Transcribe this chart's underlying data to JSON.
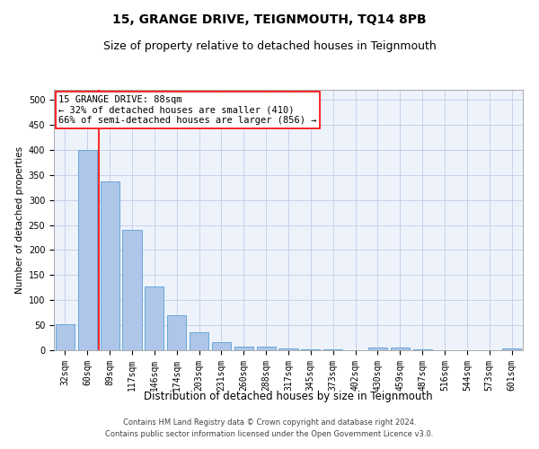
{
  "title": "15, GRANGE DRIVE, TEIGNMOUTH, TQ14 8PB",
  "subtitle": "Size of property relative to detached houses in Teignmouth",
  "xlabel": "Distribution of detached houses by size in Teignmouth",
  "ylabel": "Number of detached properties",
  "categories": [
    "32sqm",
    "60sqm",
    "89sqm",
    "117sqm",
    "146sqm",
    "174sqm",
    "203sqm",
    "231sqm",
    "260sqm",
    "288sqm",
    "317sqm",
    "345sqm",
    "373sqm",
    "402sqm",
    "430sqm",
    "459sqm",
    "487sqm",
    "516sqm",
    "544sqm",
    "573sqm",
    "601sqm"
  ],
  "values": [
    52,
    400,
    337,
    240,
    128,
    70,
    35,
    17,
    8,
    7,
    4,
    1,
    1,
    0,
    6,
    5,
    2,
    0,
    0,
    0,
    3
  ],
  "bar_color": "#aec6e8",
  "bar_edge_color": "#5a9fd4",
  "annotation_text": "15 GRANGE DRIVE: 88sqm\n← 32% of detached houses are smaller (410)\n66% of semi-detached houses are larger (856) →",
  "annotation_box_color": "white",
  "annotation_box_edge_color": "red",
  "vline_color": "red",
  "vline_x_index": 2,
  "ylim": [
    0,
    520
  ],
  "yticks": [
    0,
    50,
    100,
    150,
    200,
    250,
    300,
    350,
    400,
    450,
    500
  ],
  "footer_line1": "Contains HM Land Registry data © Crown copyright and database right 2024.",
  "footer_line2": "Contains public sector information licensed under the Open Government Licence v3.0.",
  "background_color": "#eef2fb",
  "grid_color": "#c0cce8",
  "title_fontsize": 10,
  "subtitle_fontsize": 9,
  "xlabel_fontsize": 8.5,
  "ylabel_fontsize": 7.5,
  "tick_fontsize": 7,
  "annotation_fontsize": 7.5,
  "footer_fontsize": 6
}
